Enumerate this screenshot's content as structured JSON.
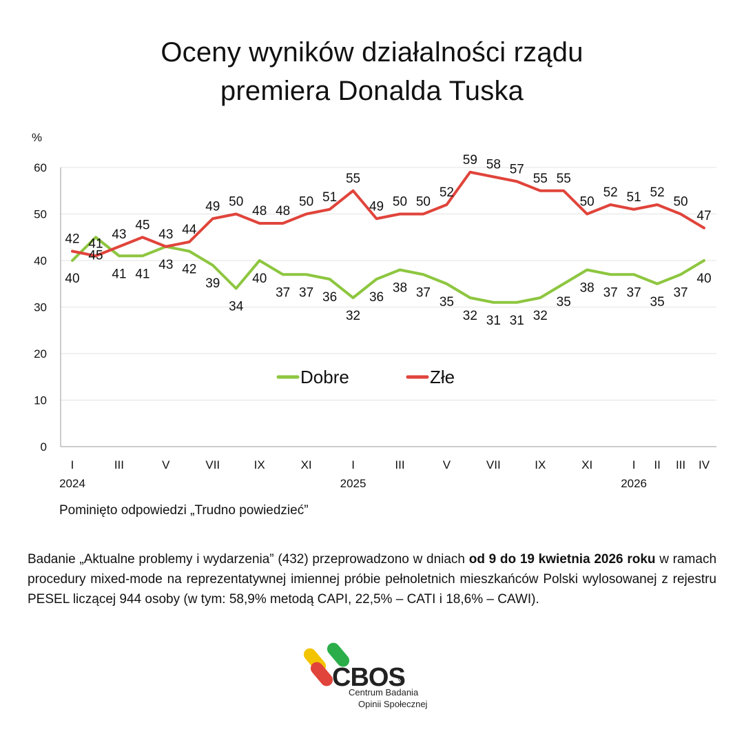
{
  "title_lines": [
    "Oceny wyników działalności rządu",
    "premiera Donalda Tuska"
  ],
  "chart_data": {
    "type": "line",
    "title": "Oceny wyników działalności rządu premiera Donalda Tuska",
    "ylabel": "%",
    "ylim": [
      0,
      60
    ],
    "yticks": [
      0,
      10,
      20,
      30,
      40,
      50,
      60
    ],
    "grid": true,
    "legend_placement": "center",
    "x": [
      "I 2024",
      "II 2024",
      "III 2024",
      "IV 2024",
      "V 2024",
      "VI 2024",
      "VII 2024",
      "VIII 2024",
      "IX 2024",
      "X 2024",
      "XI 2024",
      "XII 2024",
      "I 2025",
      "II 2025",
      "III 2025",
      "IV 2025",
      "V 2025",
      "VI 2025",
      "VII 2025",
      "VIII 2025",
      "IX 2025",
      "X 2025",
      "XI 2025",
      "XII 2025",
      "I 2026",
      "II 2026",
      "III 2026",
      "IV 2026"
    ],
    "x_tick_labels": [
      {
        "index": 0,
        "label": "I"
      },
      {
        "index": 2,
        "label": "III"
      },
      {
        "index": 4,
        "label": "V"
      },
      {
        "index": 6,
        "label": "VII"
      },
      {
        "index": 8,
        "label": "IX"
      },
      {
        "index": 10,
        "label": "XI"
      },
      {
        "index": 12,
        "label": "I"
      },
      {
        "index": 14,
        "label": "III"
      },
      {
        "index": 16,
        "label": "V"
      },
      {
        "index": 18,
        "label": "VII"
      },
      {
        "index": 20,
        "label": "IX"
      },
      {
        "index": 22,
        "label": "XI"
      },
      {
        "index": 24,
        "label": "I"
      },
      {
        "index": 25,
        "label": "II"
      },
      {
        "index": 26,
        "label": "III"
      },
      {
        "index": 27,
        "label": "IV"
      }
    ],
    "year_labels": [
      {
        "index": 0,
        "label": "2024"
      },
      {
        "index": 12,
        "label": "2025"
      },
      {
        "index": 24,
        "label": "2026"
      }
    ],
    "series": [
      {
        "name": "Dobre",
        "color": "#8dc63f",
        "values": [
          40,
          45,
          41,
          41,
          43,
          42,
          39,
          34,
          40,
          37,
          37,
          36,
          32,
          36,
          38,
          37,
          35,
          32,
          31,
          31,
          32,
          35,
          38,
          37,
          37,
          35,
          37,
          40
        ],
        "label_position": "below"
      },
      {
        "name": "Złe",
        "color": "#e0443b",
        "values": [
          42,
          41,
          43,
          45,
          43,
          44,
          49,
          50,
          48,
          48,
          50,
          51,
          55,
          49,
          50,
          50,
          52,
          59,
          58,
          57,
          55,
          55,
          50,
          52,
          51,
          52,
          50,
          47
        ],
        "label_position": "above"
      }
    ]
  },
  "note": "Pominięto odpowiedzi „Trudno powiedzieć”",
  "description": {
    "part1": "Badanie „Aktualne problemy i wydarzenia” (432) przeprowadzono w dniach ",
    "bold": "od 9 do 19 kwietnia 2026 roku",
    "part2": " w ramach procedury mixed-mode na reprezentatywnej imiennej próbie pełnoletnich mieszkańców Polski wylosowanej z rejestru PESEL liczącej 944 osoby (w tym: 58,9% metodą CAPI, 22,5% – CATI i 18,6% – CAWI)."
  },
  "logo": {
    "word": "CBOS",
    "reg": "®",
    "line1": "Centrum Badania",
    "line2": "Opinii Społecznej",
    "colors": [
      "#f2c500",
      "#2bae4a",
      "#e0443b"
    ]
  }
}
